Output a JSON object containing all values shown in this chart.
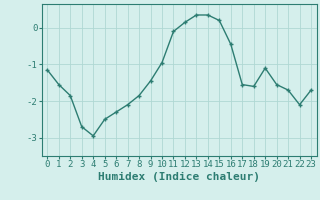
{
  "x": [
    0,
    1,
    2,
    3,
    4,
    5,
    6,
    7,
    8,
    9,
    10,
    11,
    12,
    13,
    14,
    15,
    16,
    17,
    18,
    19,
    20,
    21,
    22,
    23
  ],
  "y": [
    -1.15,
    -1.55,
    -1.85,
    -2.7,
    -2.95,
    -2.5,
    -2.3,
    -2.1,
    -1.85,
    -1.45,
    -0.95,
    -0.1,
    0.15,
    0.35,
    0.35,
    0.2,
    -0.45,
    -1.55,
    -1.6,
    -1.1,
    -1.55,
    -1.7,
    -2.1,
    -1.7
  ],
  "line_color": "#2d7d72",
  "marker": "+",
  "markersize": 3.5,
  "linewidth": 1.0,
  "bg_color": "#d5efec",
  "grid_color": "#afd8d3",
  "xlabel": "Humidex (Indice chaleur)",
  "xlabel_fontsize": 8,
  "yticks": [
    -3,
    -2,
    -1,
    0
  ],
  "ylim": [
    -3.5,
    0.65
  ],
  "xlim": [
    -0.5,
    23.5
  ],
  "xtick_labels": [
    "0",
    "1",
    "2",
    "3",
    "4",
    "5",
    "6",
    "7",
    "8",
    "9",
    "10",
    "11",
    "12",
    "13",
    "14",
    "15",
    "16",
    "17",
    "18",
    "19",
    "20",
    "21",
    "22",
    "23"
  ],
  "tick_fontsize": 6.5,
  "axis_color": "#2d7d72"
}
